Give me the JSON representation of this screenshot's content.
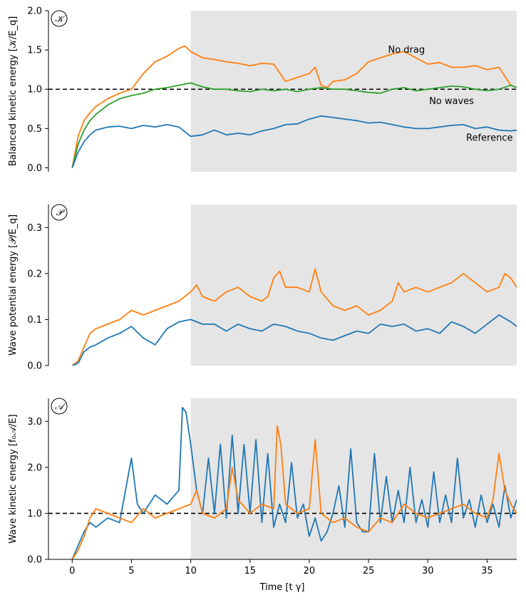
{
  "chart_data": {
    "type": "line",
    "shared_xlabel": "Time [t γ]",
    "xlim": [
      -2,
      37.5
    ],
    "xticks": [
      0,
      5,
      10,
      15,
      20,
      25,
      30,
      35
    ],
    "shade_start": 10,
    "colors": {
      "blue": "#1f77b4",
      "orange": "#ff7f0e",
      "green": "#2ca02c",
      "shade": "#e5e5e5"
    },
    "panels": [
      {
        "badge": "𝒦",
        "ylabel": "Balanced kinetic energy [𝒦/E_q]",
        "ylim": [
          -0.05,
          2.0
        ],
        "yticks": [
          0.0,
          0.5,
          1.0,
          1.5,
          2.0
        ],
        "ytick_labels": [
          "0.0",
          "0.5",
          "1.0",
          "1.5",
          "2.0"
        ],
        "hline": 1.0,
        "annotations": [
          {
            "text": "No drag",
            "x": 28.2,
            "y": 1.5
          },
          {
            "text": "No waves",
            "x": 32.0,
            "y": 0.85
          },
          {
            "text": "Reference",
            "x": 35.2,
            "y": 0.38
          }
        ],
        "series": [
          {
            "color": "orange",
            "x": [
              0,
              0.5,
              1,
              1.5,
              2,
              3,
              4,
              5,
              6,
              7,
              8,
              9,
              9.5,
              10,
              11,
              12,
              13,
              14,
              15,
              16,
              17,
              18,
              19,
              20,
              20.5,
              21,
              21.5,
              22,
              23,
              24,
              25,
              26,
              27,
              28,
              29,
              30,
              31,
              32,
              33,
              34,
              35,
              36,
              37,
              37.5
            ],
            "y": [
              0,
              0.4,
              0.6,
              0.7,
              0.78,
              0.88,
              0.95,
              1.0,
              1.2,
              1.35,
              1.42,
              1.52,
              1.55,
              1.48,
              1.4,
              1.38,
              1.35,
              1.33,
              1.3,
              1.33,
              1.32,
              1.1,
              1.15,
              1.2,
              1.28,
              1.05,
              1.02,
              1.1,
              1.12,
              1.2,
              1.35,
              1.4,
              1.45,
              1.48,
              1.4,
              1.32,
              1.34,
              1.28,
              1.28,
              1.3,
              1.25,
              1.28,
              1.05,
              1.02
            ]
          },
          {
            "color": "green",
            "x": [
              0,
              0.5,
              1,
              1.5,
              2,
              3,
              4,
              5,
              6,
              7,
              8,
              9,
              10,
              11,
              12,
              13,
              14,
              15,
              16,
              17,
              18,
              19,
              20,
              21,
              22,
              23,
              24,
              25,
              26,
              27,
              28,
              29,
              30,
              31,
              32,
              33,
              34,
              35,
              36,
              37,
              37.5
            ],
            "y": [
              0,
              0.3,
              0.48,
              0.6,
              0.68,
              0.8,
              0.88,
              0.92,
              0.95,
              1.0,
              1.02,
              1.05,
              1.08,
              1.03,
              1.0,
              1.0,
              0.98,
              0.97,
              1.0,
              0.98,
              1.0,
              0.97,
              1.0,
              1.02,
              1.0,
              1.0,
              0.98,
              0.96,
              0.95,
              1.0,
              1.02,
              0.98,
              1.0,
              1.02,
              1.04,
              1.03,
              1.0,
              0.98,
              1.0,
              1.05,
              1.02
            ]
          },
          {
            "color": "blue",
            "x": [
              0,
              0.5,
              1,
              1.5,
              2,
              3,
              4,
              5,
              6,
              7,
              8,
              9,
              10,
              11,
              12,
              13,
              14,
              15,
              16,
              17,
              18,
              19,
              20,
              21,
              22,
              23,
              24,
              25,
              26,
              27,
              28,
              29,
              30,
              31,
              32,
              33,
              34,
              35,
              36,
              37,
              37.5
            ],
            "y": [
              0,
              0.2,
              0.33,
              0.42,
              0.48,
              0.52,
              0.53,
              0.5,
              0.54,
              0.52,
              0.55,
              0.52,
              0.4,
              0.42,
              0.48,
              0.42,
              0.44,
              0.42,
              0.47,
              0.5,
              0.55,
              0.56,
              0.62,
              0.66,
              0.64,
              0.62,
              0.6,
              0.57,
              0.58,
              0.55,
              0.52,
              0.5,
              0.5,
              0.52,
              0.54,
              0.55,
              0.5,
              0.52,
              0.48,
              0.47,
              0.48
            ]
          }
        ]
      },
      {
        "badge": "𝒫",
        "ylabel": "Wave potential energy [𝒫/E_q]",
        "ylim": [
          0.0,
          0.35
        ],
        "yticks": [
          0.0,
          0.1,
          0.2,
          0.3
        ],
        "ytick_labels": [
          "0.0",
          "0.1",
          "0.2",
          "0.3"
        ],
        "series": [
          {
            "color": "orange",
            "x": [
              0,
              0.5,
              1,
              1.5,
              2,
              3,
              4,
              5,
              6,
              7,
              8,
              9,
              10,
              10.5,
              11,
              12,
              13,
              14,
              15,
              16,
              16.5,
              17,
              17.5,
              18,
              19,
              20,
              20.5,
              21,
              22,
              23,
              24,
              25,
              26,
              27,
              27.5,
              28,
              29,
              30,
              31,
              32,
              33,
              34,
              35,
              36,
              36.5,
              37,
              37.5
            ],
            "y": [
              0,
              0.01,
              0.04,
              0.07,
              0.08,
              0.09,
              0.1,
              0.12,
              0.11,
              0.12,
              0.13,
              0.14,
              0.16,
              0.175,
              0.15,
              0.14,
              0.16,
              0.17,
              0.15,
              0.14,
              0.15,
              0.19,
              0.205,
              0.17,
              0.17,
              0.16,
              0.21,
              0.16,
              0.13,
              0.12,
              0.13,
              0.11,
              0.12,
              0.14,
              0.18,
              0.16,
              0.17,
              0.16,
              0.17,
              0.18,
              0.2,
              0.18,
              0.16,
              0.17,
              0.2,
              0.19,
              0.17
            ]
          },
          {
            "color": "blue",
            "x": [
              0,
              0.5,
              1,
              1.5,
              2,
              3,
              4,
              5,
              6,
              7,
              8,
              9,
              10,
              11,
              12,
              13,
              14,
              15,
              16,
              17,
              18,
              19,
              20,
              21,
              22,
              23,
              24,
              25,
              26,
              27,
              28,
              29,
              30,
              31,
              32,
              33,
              34,
              35,
              36,
              37,
              37.5
            ],
            "y": [
              0,
              0.005,
              0.03,
              0.04,
              0.045,
              0.06,
              0.07,
              0.085,
              0.06,
              0.045,
              0.08,
              0.095,
              0.1,
              0.09,
              0.09,
              0.075,
              0.09,
              0.08,
              0.075,
              0.09,
              0.085,
              0.075,
              0.07,
              0.06,
              0.055,
              0.065,
              0.075,
              0.07,
              0.09,
              0.085,
              0.09,
              0.075,
              0.08,
              0.07,
              0.095,
              0.085,
              0.07,
              0.09,
              0.11,
              0.095,
              0.085
            ]
          }
        ]
      },
      {
        "badge": "𝒜",
        "ylabel": "Wave kinetic energy [f₀𝒜/E]",
        "ylim": [
          0.0,
          3.5
        ],
        "yticks": [
          0.0,
          1.0,
          2.0,
          3.0
        ],
        "ytick_labels": [
          "0.0",
          "1.0",
          "2.0",
          "3.0"
        ],
        "hline": 1.0,
        "series": [
          {
            "color": "blue",
            "x": [
              0,
              0.5,
              1,
              1.5,
              2,
              3,
              4,
              4.5,
              5,
              5.5,
              6,
              7,
              8,
              9,
              9.3,
              9.6,
              10,
              10.5,
              11,
              11.5,
              12,
              12.5,
              13,
              13.5,
              14,
              14.5,
              15,
              15.5,
              16,
              16.5,
              17,
              17.5,
              18,
              18.5,
              19,
              19.5,
              20,
              20.5,
              21,
              21.5,
              22,
              22.5,
              23,
              23.5,
              24,
              24.5,
              25,
              25.5,
              26,
              26.5,
              27,
              27.5,
              28,
              28.5,
              29,
              29.5,
              30,
              30.5,
              31,
              31.5,
              32,
              32.5,
              33,
              33.5,
              34,
              34.5,
              35,
              35.5,
              36,
              36.5,
              37,
              37.5
            ],
            "y": [
              0,
              0.3,
              0.6,
              0.8,
              0.7,
              0.9,
              0.8,
              1.5,
              2.2,
              1.2,
              1.0,
              1.4,
              1.2,
              1.5,
              3.3,
              3.2,
              2.5,
              1.5,
              1.0,
              2.2,
              1.0,
              2.5,
              0.9,
              2.7,
              1.0,
              2.5,
              1.0,
              2.6,
              0.8,
              2.3,
              0.7,
              1.2,
              0.8,
              2.1,
              0.9,
              1.2,
              0.5,
              0.9,
              0.4,
              0.6,
              1.0,
              1.6,
              0.7,
              2.4,
              0.8,
              0.6,
              0.6,
              2.3,
              0.8,
              1.8,
              0.8,
              1.5,
              0.8,
              2.0,
              0.8,
              1.3,
              0.7,
              1.9,
              0.8,
              1.4,
              0.8,
              2.2,
              0.9,
              1.3,
              0.7,
              1.4,
              0.8,
              1.2,
              0.7,
              1.6,
              0.9,
              1.3
            ]
          },
          {
            "color": "orange",
            "x": [
              0,
              0.5,
              1,
              1.5,
              2,
              3,
              4,
              5,
              6,
              7,
              8,
              9,
              10,
              10.5,
              11,
              12,
              13,
              13.5,
              14,
              15,
              16,
              17,
              17.3,
              17.6,
              18,
              19,
              20,
              20.5,
              21,
              21.5,
              22,
              23,
              24,
              25,
              26,
              27,
              28,
              29,
              30,
              31,
              32,
              33,
              34,
              35,
              35.5,
              36,
              36.5,
              37,
              37.5
            ],
            "y": [
              0,
              0.2,
              0.5,
              0.9,
              1.1,
              1.0,
              0.9,
              0.8,
              1.1,
              0.9,
              1.0,
              1.1,
              1.2,
              1.5,
              1.0,
              0.9,
              1.1,
              2.0,
              1.3,
              1.0,
              1.2,
              1.1,
              2.9,
              2.5,
              1.2,
              1.0,
              1.1,
              2.6,
              1.0,
              0.9,
              0.8,
              0.9,
              0.7,
              0.6,
              0.9,
              0.8,
              1.2,
              1.0,
              0.9,
              1.0,
              1.1,
              1.2,
              1.0,
              0.9,
              1.3,
              2.3,
              1.5,
              1.2,
              1.0
            ]
          }
        ]
      }
    ]
  }
}
